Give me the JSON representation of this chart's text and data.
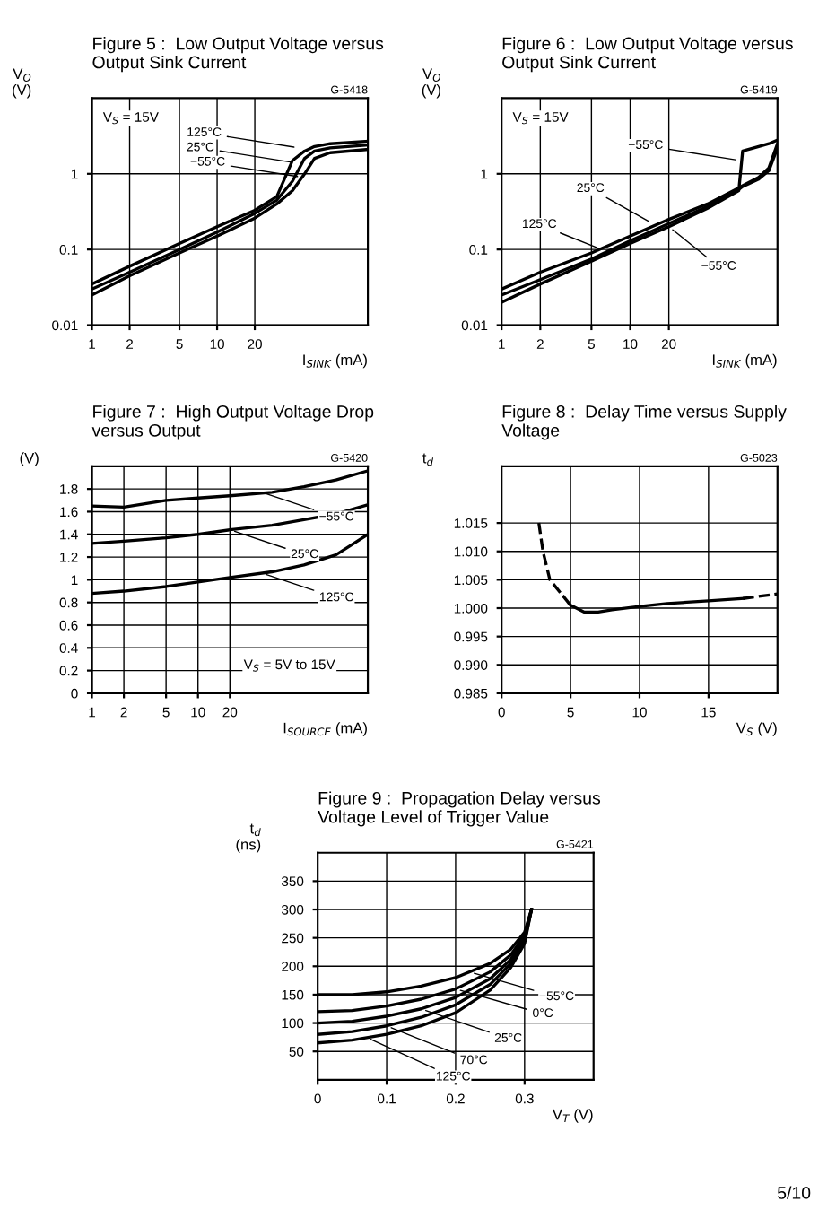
{
  "chart_data": [
    {
      "type": "line",
      "title": "Figure 5 :  Low Output Voltage versus Output Sink Current",
      "xlabel": "I$_{SINK}$ (mA)",
      "ylabel": "V$_{O}$\n(V)",
      "log": "xy",
      "grid": true,
      "x": [
        1,
        2,
        5,
        10,
        20,
        30,
        40,
        50,
        60,
        80,
        160
      ],
      "series": [
        {
          "color": "#000000",
          "values": [
            0.035,
            0.06,
            0.12,
            0.2,
            0.33,
            0.5,
            1.5,
            2.0,
            2.3,
            2.5,
            2.7
          ]
        },
        {
          "color": "#000000",
          "values": [
            0.03,
            0.05,
            0.1,
            0.17,
            0.3,
            0.45,
            0.8,
            1.6,
            2.0,
            2.2,
            2.4
          ]
        },
        {
          "color": "#000000",
          "values": [
            0.025,
            0.045,
            0.09,
            0.15,
            0.26,
            0.4,
            0.6,
            1.0,
            1.6,
            1.9,
            2.1
          ]
        }
      ],
      "xlim": [
        1,
        160
      ],
      "ylim": [
        0.01,
        10
      ],
      "xticks": [
        1,
        2,
        5,
        10,
        20
      ],
      "yticks": [
        {
          "value": 0.01,
          "label": "0.01"
        },
        {
          "value": 0.1,
          "label": "0.1"
        },
        1
      ],
      "annotations": [
        "G-5418",
        "V$_{S}$ = 15V",
        {
          "text": "125°C",
          "x": 45,
          "y": 2.2
        },
        {
          "text": "25°C",
          "x": 42,
          "y": 1.4
        },
        {
          "text": "−55°C",
          "x": 48,
          "y": 0.9
        }
      ]
    },
    {
      "type": "line",
      "title": "Figure 6 :  Low Output Voltage versus Output Sink Current",
      "xlabel": "I$_{SINK}$ (mA)",
      "ylabel": "V$_{O}$\n(V)",
      "log": "xy",
      "grid": true,
      "x": [
        1,
        2,
        5,
        10,
        20,
        40,
        70,
        75,
        100,
        120,
        140
      ],
      "series": [
        {
          "color": "#000000",
          "values": [
            0.03,
            0.05,
            0.09,
            0.15,
            0.25,
            0.4,
            0.65,
            0.7,
            0.9,
            1.2,
            2.5
          ]
        },
        {
          "color": "#000000",
          "values": [
            0.025,
            0.04,
            0.075,
            0.13,
            0.22,
            0.37,
            0.62,
            0.68,
            0.85,
            1.1,
            2.2
          ]
        },
        {
          "color": "#000000",
          "values": [
            0.02,
            0.035,
            0.07,
            0.12,
            0.2,
            0.35,
            0.6,
            2.0,
            2.3,
            2.5,
            2.8
          ]
        }
      ],
      "xlim": [
        1,
        140
      ],
      "ylim": [
        0.01,
        10
      ],
      "xticks": [
        1,
        2,
        5,
        10,
        20
      ],
      "yticks": [
        {
          "value": 0.01,
          "label": "0.01"
        },
        {
          "value": 0.1,
          "label": "0.1"
        },
        1
      ],
      "annotations": [
        "G-5419",
        "V$_{S}$ = 15V",
        {
          "text": "−55°C",
          "x": 72,
          "y": 1.5
        },
        {
          "text": "25°C",
          "x": 15,
          "y": 0.22
        },
        {
          "text": "125°C",
          "x": 6,
          "y": 0.1
        },
        {
          "text": "−55°C",
          "x": 20,
          "y": 0.2
        }
      ]
    },
    {
      "type": "line",
      "title": "Figure 7 :  High Output Voltage Drop versus Output",
      "xlabel": "I$_{SOURCE}$ (mA)",
      "ylabel": "(V)",
      "log": "x",
      "grid": true,
      "x": [
        1,
        2,
        5,
        10,
        20,
        50,
        100,
        200,
        400
      ],
      "series": [
        {
          "color": "#000000",
          "values": [
            1.65,
            1.64,
            1.7,
            1.72,
            1.74,
            1.77,
            1.82,
            1.88,
            1.96
          ]
        },
        {
          "color": "#000000",
          "values": [
            1.32,
            1.34,
            1.37,
            1.4,
            1.44,
            1.48,
            1.53,
            1.58,
            1.66
          ]
        },
        {
          "color": "#000000",
          "values": [
            0.88,
            0.9,
            0.94,
            0.98,
            1.02,
            1.07,
            1.13,
            1.22,
            1.4
          ]
        }
      ],
      "xlim": [
        1,
        400
      ],
      "ylim": [
        0,
        2
      ],
      "xticks": [
        1,
        2,
        5,
        10,
        20
      ],
      "yticks": [
        0,
        0.2,
        0.4,
        0.6,
        0.8,
        1,
        1.2,
        1.4,
        1.6,
        1.8
      ],
      "annotations": [
        "G-5420",
        "V$_{S}$ = 5V to 15V",
        {
          "text": "−55°C",
          "x": 40,
          "y": 1.77
        },
        {
          "text": "25°C",
          "x": 20,
          "y": 1.44
        },
        {
          "text": "125°C",
          "x": 40,
          "y": 1.06
        }
      ]
    },
    {
      "type": "line",
      "title": "Figure 8 :  Delay Time versus Supply Voltage",
      "xlabel": "V$_{S}$ (V)",
      "ylabel": "t$_{d}$",
      "grid": true,
      "series": [
        {
          "color": "#000000",
          "line_style": "dashed",
          "x": [
            2.7,
            3,
            3.5,
            4.5
          ],
          "values": [
            1.015,
            1.01,
            1.005,
            1.002
          ]
        },
        {
          "color": "#000000",
          "line_style": "solid",
          "x": [
            4.5,
            5,
            6,
            7,
            8,
            10,
            12,
            15,
            17.5
          ],
          "values": [
            1.002,
            1.0005,
            0.9993,
            0.9993,
            0.9997,
            1.0003,
            1.0008,
            1.0013,
            1.0017
          ]
        },
        {
          "color": "#000000",
          "line_style": "dashed",
          "x": [
            17.5,
            20
          ],
          "values": [
            1.0017,
            1.0025
          ]
        }
      ],
      "xlim": [
        0,
        20
      ],
      "ylim": [
        0.985,
        1.025
      ],
      "xticks": [
        0,
        5,
        10,
        15
      ],
      "yticks": [
        {
          "value": 0.985,
          "label": "0.985"
        },
        {
          "value": 0.99,
          "label": "0.990"
        },
        {
          "value": 0.995,
          "label": "0.995"
        },
        {
          "value": 1.0,
          "label": "1.000"
        },
        {
          "value": 1.005,
          "label": "1.005"
        },
        {
          "value": 1.01,
          "label": "1.010"
        },
        {
          "value": 1.015,
          "label": "1.015"
        }
      ],
      "annotations": [
        "G-5023"
      ]
    },
    {
      "type": "line",
      "title": "Figure 9 :  Propagation Delay versus Voltage Level of Trigger Value",
      "xlabel": "V$_{T}$ (V)",
      "ylabel": "t$_{d}$\n(ns)",
      "grid": true,
      "x": [
        0,
        0.05,
        0.1,
        0.15,
        0.2,
        0.25,
        0.28,
        0.3,
        0.31
      ],
      "series": [
        {
          "color": "#000000",
          "values": [
            150,
            150,
            155,
            165,
            180,
            205,
            230,
            260,
            300
          ]
        },
        {
          "color": "#000000",
          "values": [
            120,
            122,
            130,
            142,
            160,
            190,
            220,
            255,
            300
          ]
        },
        {
          "color": "#000000",
          "values": [
            100,
            103,
            112,
            125,
            145,
            178,
            212,
            250,
            300
          ]
        },
        {
          "color": "#000000",
          "values": [
            80,
            85,
            95,
            110,
            132,
            168,
            205,
            245,
            300
          ]
        },
        {
          "color": "#000000",
          "values": [
            65,
            70,
            80,
            95,
            118,
            158,
            198,
            240,
            300
          ]
        }
      ],
      "xlim": [
        0,
        0.4
      ],
      "ylim": [
        0,
        400
      ],
      "xticks": [
        0,
        0.1,
        0.2,
        0.3
      ],
      "yticks": [
        50,
        100,
        150,
        200,
        250,
        300,
        350
      ],
      "annotations": [
        "G-5421",
        "5/10",
        {
          "text": "−55°C",
          "x": 0.22,
          "y": 190
        },
        {
          "text": "0°C",
          "x": 0.2,
          "y": 160
        },
        {
          "text": "25°C",
          "x": 0.15,
          "y": 125
        },
        {
          "text": "70°C",
          "x": 0.1,
          "y": 95
        },
        {
          "text": "125°C",
          "x": 0.07,
          "y": 75
        }
      ]
    }
  ]
}
